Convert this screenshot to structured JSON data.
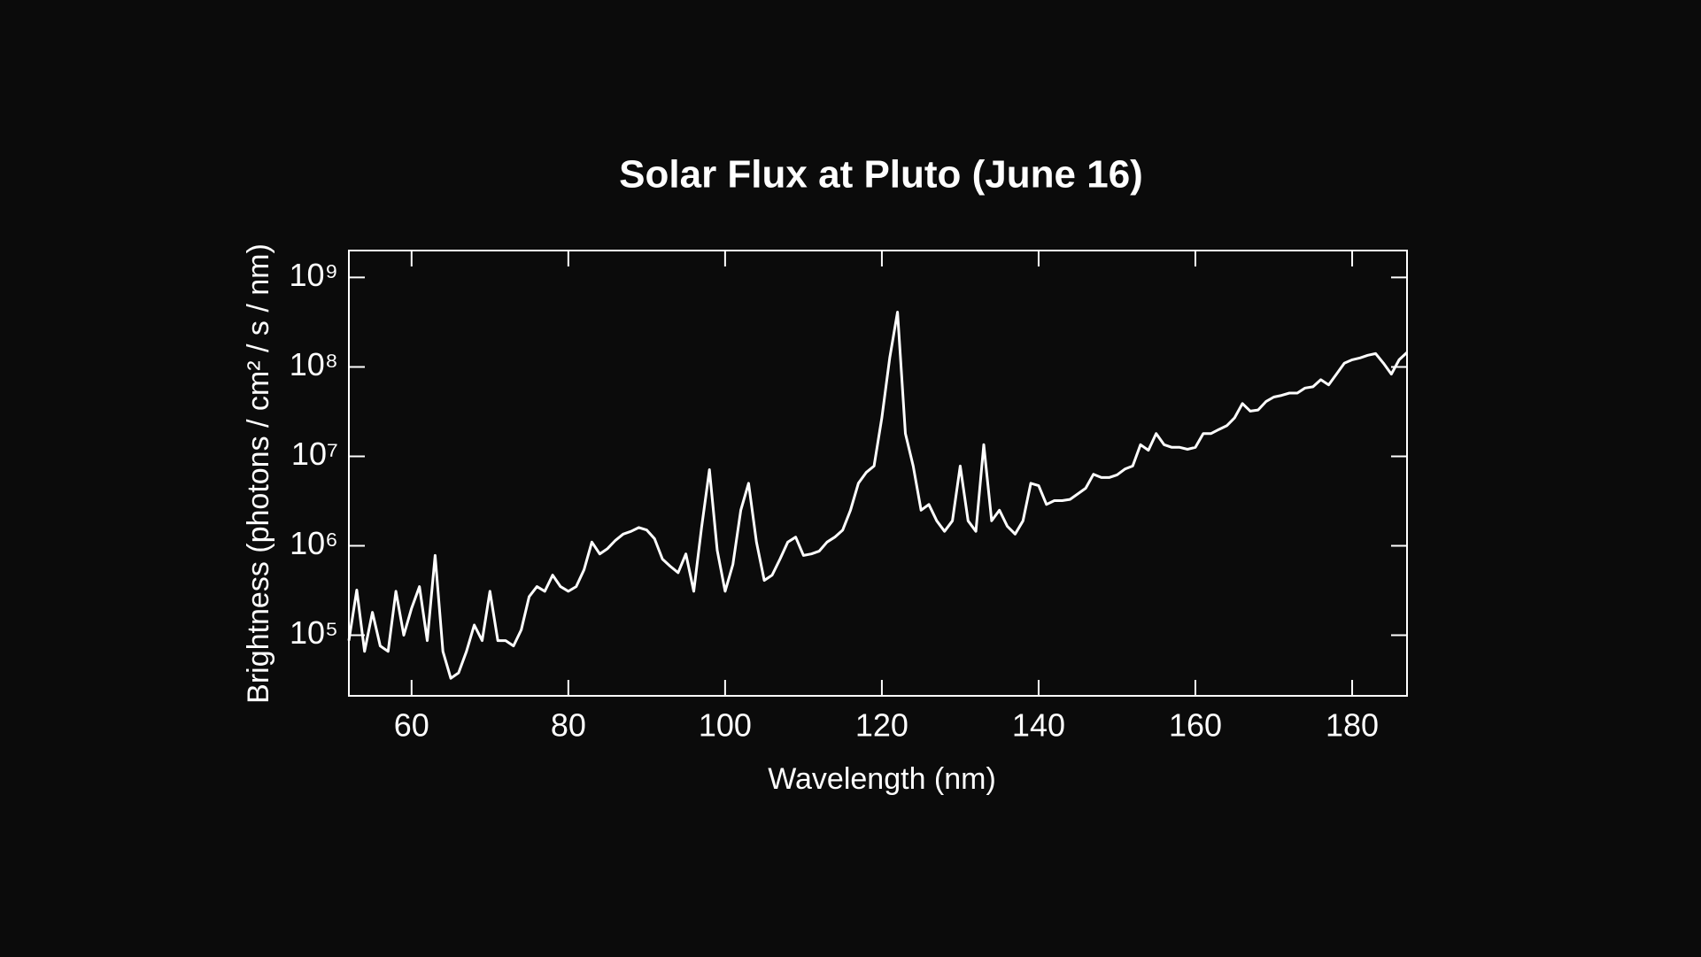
{
  "chart_data": {
    "type": "line",
    "title": "Solar Flux at Pluto (June 16)",
    "xlabel": "Wavelength (nm)",
    "ylabel": "Brightness (photons / cm² / s / nm)",
    "log_y": true,
    "xlim": [
      52,
      187
    ],
    "ylim": [
      21000,
      2000000000
    ],
    "xticks": [
      60,
      80,
      100,
      120,
      140,
      160,
      180
    ],
    "yticks": [
      {
        "value": 100000,
        "label": "10⁵"
      },
      {
        "value": 1000000,
        "label": "10⁶"
      },
      {
        "value": 10000000,
        "label": "10⁷"
      },
      {
        "value": 100000000,
        "label": "10⁸"
      },
      {
        "value": 1000000000,
        "label": "10⁹"
      }
    ],
    "color": "#ffffff",
    "x": [
      52,
      53,
      54,
      55,
      56,
      57,
      58,
      59,
      60,
      61,
      62,
      63,
      64,
      65,
      66,
      67,
      68,
      69,
      70,
      71,
      72,
      73,
      74,
      75,
      76,
      77,
      78,
      79,
      80,
      81,
      82,
      83,
      84,
      85,
      86,
      87,
      88,
      89,
      90,
      91,
      92,
      93,
      94,
      95,
      96,
      97,
      98,
      99,
      100,
      101,
      102,
      103,
      104,
      105,
      106,
      107,
      108,
      109,
      110,
      111,
      112,
      113,
      114,
      115,
      116,
      117,
      118,
      119,
      120,
      121,
      122,
      123,
      124,
      125,
      126,
      127,
      128,
      129,
      130,
      131,
      132,
      133,
      134,
      135,
      136,
      137,
      138,
      139,
      140,
      141,
      142,
      143,
      144,
      145,
      146,
      147,
      148,
      149,
      150,
      151,
      152,
      153,
      154,
      155,
      156,
      157,
      158,
      159,
      160,
      161,
      162,
      163,
      164,
      165,
      166,
      167,
      168,
      169,
      170,
      171,
      172,
      173,
      174,
      175,
      176,
      177,
      178,
      179,
      180,
      181,
      182,
      183,
      184,
      185,
      186,
      187
    ],
    "values": [
      87000,
      320000,
      66000,
      180000,
      76000,
      66000,
      310000,
      100000,
      200000,
      350000,
      87000,
      780000,
      66000,
      33000,
      38000,
      66000,
      130000,
      87000,
      310000,
      87000,
      87000,
      76000,
      115000,
      270000,
      350000,
      310000,
      470000,
      350000,
      310000,
      350000,
      540000,
      1100000,
      810000,
      930000,
      1150000,
      1350000,
      1450000,
      1600000,
      1500000,
      1200000,
      710000,
      590000,
      500000,
      810000,
      310000,
      1600000,
      7100000,
      890000,
      310000,
      620000,
      2500000,
      5000000,
      1100000,
      410000,
      470000,
      710000,
      1100000,
      1250000,
      780000,
      810000,
      870000,
      1100000,
      1250000,
      1500000,
      2500000,
      5000000,
      6600000,
      7800000,
      27000000,
      126000000,
      410000000,
      18000000,
      7800000,
      2500000,
      2900000,
      1900000,
      1450000,
      1900000,
      7800000,
      1900000,
      1450000,
      13500000,
      1900000,
      2500000,
      1650000,
      1350000,
      1900000,
      5000000,
      4700000,
      2900000,
      3200000,
      3200000,
      3300000,
      3800000,
      4400000,
      6300000,
      5800000,
      5800000,
      6200000,
      7200000,
      7800000,
      13500000,
      11700000,
      18000000,
      13500000,
      12600000,
      12600000,
      12000000,
      12600000,
      18000000,
      18000000,
      20000000,
      22000000,
      27000000,
      39000000,
      32000000,
      33000000,
      41000000,
      46000000,
      48000000,
      51000000,
      51000000,
      58000000,
      60000000,
      72000000,
      63000000,
      83000000,
      110000000,
      120000000,
      126000000,
      135000000,
      141000000,
      110000000,
      83000000,
      120000000,
      145000000
    ]
  }
}
